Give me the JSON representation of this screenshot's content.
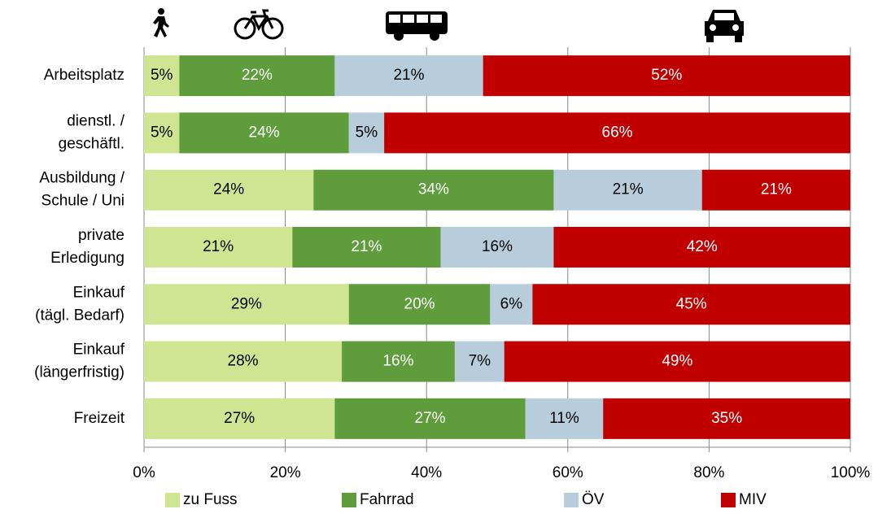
{
  "chart_data": {
    "type": "stacked_barh",
    "categories": [
      "Arbeitsplatz",
      "dienstl. /\ngeschäftl.",
      "Ausbildung /\nSchule / Uni",
      "private\nErledigung",
      "Einkauf\n(tägl. Bedarf)",
      "Einkauf\n(längerfristig)",
      "Freizeit"
    ],
    "series": [
      {
        "name": "zu Fuss",
        "color": "#d0e592",
        "label_color": "#000000",
        "values": [
          5,
          5,
          24,
          21,
          29,
          28,
          27
        ],
        "value_labels": [
          "5%",
          "5%",
          "24%",
          "21%",
          "29%",
          "28%",
          "27%"
        ]
      },
      {
        "name": "Fahrrad",
        "color": "#5e9c3c",
        "label_color": "#ffffff",
        "values": [
          22,
          24,
          34,
          21,
          20,
          16,
          27
        ],
        "value_labels": [
          "22%",
          "24%",
          "34%",
          "21%",
          "20%",
          "16%",
          "27%"
        ]
      },
      {
        "name": "ÖV",
        "color": "#b7cddb",
        "label_color": "#000000",
        "values": [
          21,
          5,
          21,
          16,
          6,
          7,
          11
        ],
        "value_labels": [
          "21%",
          "5%",
          "21%",
          "16%",
          "6%",
          "7%",
          "11%"
        ]
      },
      {
        "name": "MIV",
        "color": "#c00000",
        "label_color": "#ffffff",
        "values": [
          52,
          66,
          21,
          42,
          45,
          49,
          35
        ],
        "value_labels": [
          "52%",
          "66%",
          "21%",
          "42%",
          "45%",
          "49%",
          "35%"
        ]
      }
    ],
    "xlim": [
      0,
      100
    ],
    "xticks": [
      {
        "value": 0,
        "label": "0%"
      },
      {
        "value": 20,
        "label": "20%"
      },
      {
        "value": 40,
        "label": "40%"
      },
      {
        "value": 60,
        "label": "60%"
      },
      {
        "value": 80,
        "label": "80%"
      },
      {
        "value": 100,
        "label": "100%"
      }
    ],
    "grid": true,
    "legend": "bottom"
  }
}
